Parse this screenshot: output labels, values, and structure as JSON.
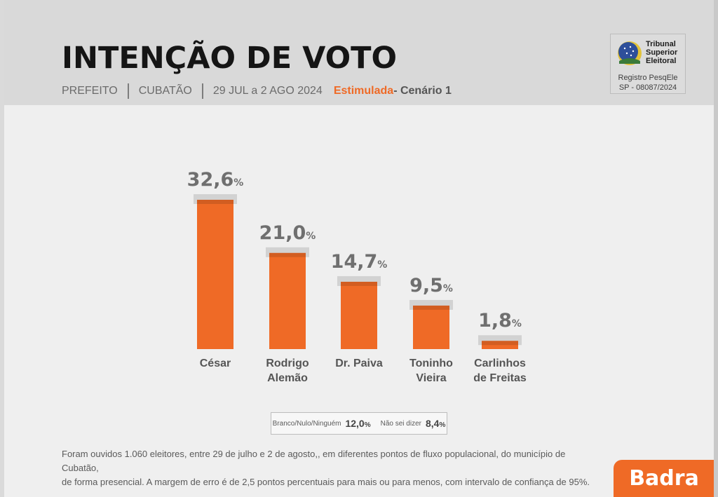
{
  "header": {
    "title": "INTENÇÃO DE VOTO",
    "office": "PREFEITO",
    "city": "CUBATÃO",
    "period": "29 JUL a 2 AGO 2024",
    "survey_type": "Estimulada",
    "scenario": " - Cenário 1"
  },
  "tse": {
    "line1": "Tribunal",
    "line2": "Superior",
    "line3": "Eleitoral",
    "reg_label": "Registro PesqEle",
    "reg_number": "SP -  08087/2024"
  },
  "colors": {
    "bar": "#ef6a26",
    "bar_cap": "#d2d2d2",
    "value_text": "#6f6f6f",
    "label_text": "#555555"
  },
  "chart_data": {
    "type": "bar",
    "title": "INTENÇÃO DE VOTO",
    "categories": [
      "César",
      "Rodrigo Alemão",
      "Dr. Paiva",
      "Toninho Vieira",
      "Carlinhos de Freitas"
    ],
    "category_lines": [
      [
        "César"
      ],
      [
        "Rodrigo",
        "Alemão"
      ],
      [
        "Dr. Paiva"
      ],
      [
        "Toninho",
        "Vieira"
      ],
      [
        "Carlinhos",
        "de Freitas"
      ]
    ],
    "values": [
      32.6,
      21.0,
      14.7,
      9.5,
      1.8
    ],
    "value_labels": [
      "32,6",
      "21,0",
      "14,7",
      "9,5",
      "1,8"
    ],
    "unit": "%",
    "ylim": [
      0,
      35
    ],
    "grid": false,
    "xlabel": "",
    "ylabel": ""
  },
  "others": {
    "blank_label": "Branco/Nulo/Ninguém",
    "blank_value": "12,0",
    "unknown_label": "Não sei dizer",
    "unknown_value": "8,4",
    "unit": "%"
  },
  "footnote": {
    "line1": "Foram ouvidos 1.060 eleitores, entre 29 de julho e 2 de agosto,, em diferentes pontos de fluxo populacional, do município de Cubatão,",
    "line2": "de forma presencial. A margem de erro é de 2,5 pontos percentuais para mais ou para menos, com intervalo de confiança de 95%."
  },
  "brand": {
    "name": "Badra"
  }
}
